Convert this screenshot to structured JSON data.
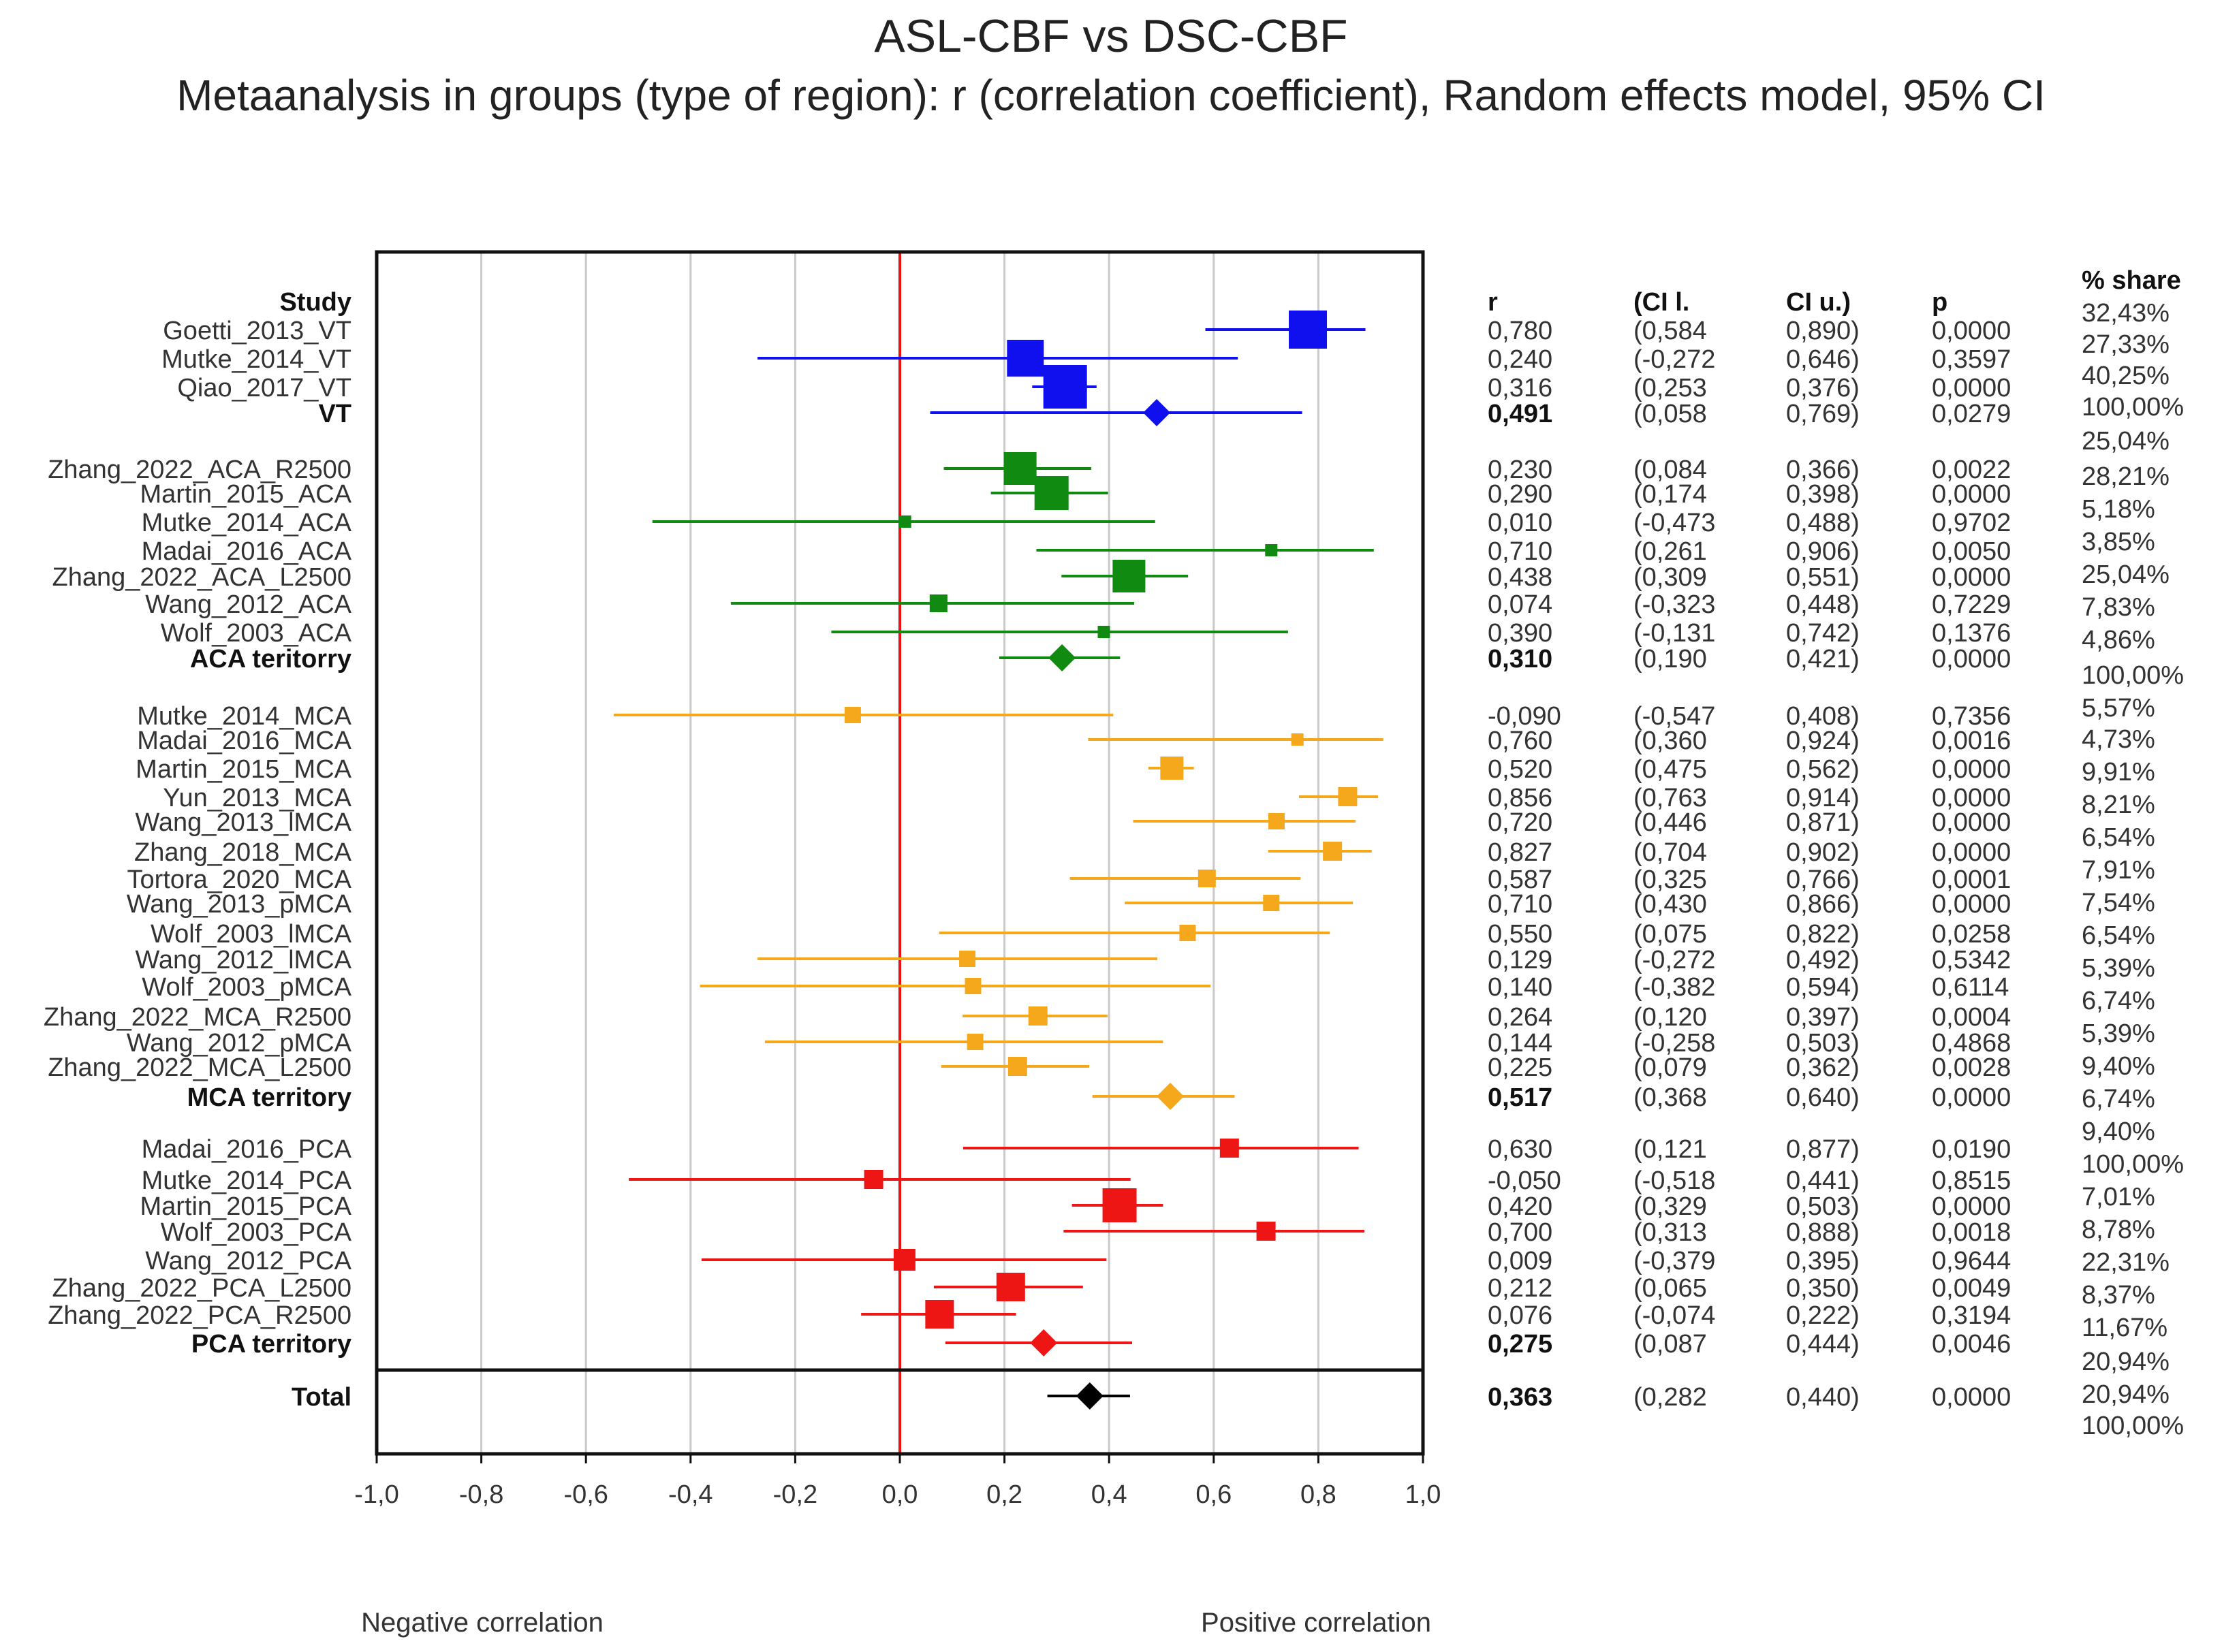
{
  "chart_data": {
    "type": "forest",
    "title": "ASL-CBF vs DSC-CBF",
    "subtitle": "Metaanalysis in groups (type of region): r (correlation coefficient), Random  effects model, 95% CI",
    "xlim": [
      -1.0,
      1.0
    ],
    "xticks": [
      "-1,0",
      "-0,8",
      "-0,6",
      "-0,4",
      "-0,2",
      "0,0",
      "0,2",
      "0,4",
      "0,6",
      "0,8",
      "1,0"
    ],
    "xlabel_left": "Negative correlation",
    "xlabel_right": "Positive correlation",
    "column_headers": {
      "study": "Study",
      "r": "r",
      "ci_l": "(CI l.",
      "ci_u": "CI u.)",
      "p": "p",
      "share": "% share"
    },
    "colors": {
      "VT": "#1010ee",
      "ACA": "#108a10",
      "MCA": "#f5a81c",
      "PCA": "#ee1515",
      "Total": "#000000",
      "zero_line": "#ee1111"
    },
    "rows": [
      {
        "study": "Goetti_2013_VT",
        "group": "VT",
        "r": 0.78,
        "lo": 0.584,
        "hi": 0.89,
        "r_txt": "0,780",
        "lo_txt": "(0,584",
        "hi_txt": "0,890)",
        "p_txt": "0,0000",
        "weight": 32.43
      },
      {
        "study": "Mutke_2014_VT",
        "group": "VT",
        "r": 0.24,
        "lo": -0.272,
        "hi": 0.646,
        "r_txt": "0,240",
        "lo_txt": "(-0,272",
        "hi_txt": "0,646)",
        "p_txt": "0,3597",
        "weight": 27.33
      },
      {
        "study": "Qiao_2017_VT",
        "group": "VT",
        "r": 0.316,
        "lo": 0.253,
        "hi": 0.376,
        "r_txt": "0,316",
        "lo_txt": "(0,253",
        "hi_txt": "0,376)",
        "p_txt": "0,0000",
        "weight": 40.25
      },
      {
        "study": "VT",
        "group": "VT",
        "summary": true,
        "r": 0.491,
        "lo": 0.058,
        "hi": 0.769,
        "r_txt": "0,491",
        "lo_txt": "(0,058",
        "hi_txt": "0,769)",
        "p_txt": "0,0279"
      },
      {
        "study": "Zhang_2022_ACA_R2500",
        "group": "ACA",
        "r": 0.23,
        "lo": 0.084,
        "hi": 0.366,
        "r_txt": "0,230",
        "lo_txt": "(0,084",
        "hi_txt": "0,366)",
        "p_txt": "0,0022",
        "weight": 25.04
      },
      {
        "study": "Martin_2015_ACA",
        "group": "ACA",
        "r": 0.29,
        "lo": 0.174,
        "hi": 0.398,
        "r_txt": "0,290",
        "lo_txt": "(0,174",
        "hi_txt": "0,398)",
        "p_txt": "0,0000",
        "weight": 28.21
      },
      {
        "study": "Mutke_2014_ACA",
        "group": "ACA",
        "r": 0.01,
        "lo": -0.473,
        "hi": 0.488,
        "r_txt": "0,010",
        "lo_txt": "(-0,473",
        "hi_txt": "0,488)",
        "p_txt": "0,9702",
        "weight": 5.18
      },
      {
        "study": "Madai_2016_ACA",
        "group": "ACA",
        "r": 0.71,
        "lo": 0.261,
        "hi": 0.906,
        "r_txt": "0,710",
        "lo_txt": "(0,261",
        "hi_txt": "0,906)",
        "p_txt": "0,0050",
        "weight": 3.85
      },
      {
        "study": "Zhang_2022_ACA_L2500",
        "group": "ACA",
        "r": 0.438,
        "lo": 0.309,
        "hi": 0.551,
        "r_txt": "0,438",
        "lo_txt": "(0,309",
        "hi_txt": "0,551)",
        "p_txt": "0,0000",
        "weight": 25.04
      },
      {
        "study": "Wang_2012_ACA",
        "group": "ACA",
        "r": 0.074,
        "lo": -0.323,
        "hi": 0.448,
        "r_txt": "0,074",
        "lo_txt": "(-0,323",
        "hi_txt": "0,448)",
        "p_txt": "0,7229",
        "weight": 7.83
      },
      {
        "study": "Wolf_2003_ACA",
        "group": "ACA",
        "r": 0.39,
        "lo": -0.131,
        "hi": 0.742,
        "r_txt": "0,390",
        "lo_txt": "(-0,131",
        "hi_txt": "0,742)",
        "p_txt": "0,1376",
        "weight": 4.86
      },
      {
        "study": "ACA teritorry",
        "group": "ACA",
        "summary": true,
        "r": 0.31,
        "lo": 0.19,
        "hi": 0.421,
        "r_txt": "0,310",
        "lo_txt": "(0,190",
        "hi_txt": "0,421)",
        "p_txt": "0,0000"
      },
      {
        "study": "Mutke_2014_MCA",
        "group": "MCA",
        "r": -0.09,
        "lo": -0.547,
        "hi": 0.408,
        "r_txt": "-0,090",
        "lo_txt": "(-0,547",
        "hi_txt": "0,408)",
        "p_txt": "0,7356",
        "weight": 5.57
      },
      {
        "study": "Madai_2016_MCA",
        "group": "MCA",
        "r": 0.76,
        "lo": 0.36,
        "hi": 0.924,
        "r_txt": "0,760",
        "lo_txt": "(0,360",
        "hi_txt": "0,924)",
        "p_txt": "0,0016",
        "weight": 4.73
      },
      {
        "study": "Martin_2015_MCA",
        "group": "MCA",
        "r": 0.52,
        "lo": 0.475,
        "hi": 0.562,
        "r_txt": "0,520",
        "lo_txt": "(0,475",
        "hi_txt": "0,562)",
        "p_txt": "0,0000",
        "weight": 9.91
      },
      {
        "study": "Yun_2013_MCA",
        "group": "MCA",
        "r": 0.856,
        "lo": 0.763,
        "hi": 0.914,
        "r_txt": "0,856",
        "lo_txt": "(0,763",
        "hi_txt": "0,914)",
        "p_txt": "0,0000",
        "weight": 8.21
      },
      {
        "study": "Wang_2013_lMCA",
        "group": "MCA",
        "r": 0.72,
        "lo": 0.446,
        "hi": 0.871,
        "r_txt": "0,720",
        "lo_txt": "(0,446",
        "hi_txt": "0,871)",
        "p_txt": "0,0000",
        "weight": 6.54
      },
      {
        "study": "Zhang_2018_MCA",
        "group": "MCA",
        "r": 0.827,
        "lo": 0.704,
        "hi": 0.902,
        "r_txt": "0,827",
        "lo_txt": "(0,704",
        "hi_txt": "0,902)",
        "p_txt": "0,0000",
        "weight": 7.91
      },
      {
        "study": "Tortora_2020_MCA",
        "group": "MCA",
        "r": 0.587,
        "lo": 0.325,
        "hi": 0.766,
        "r_txt": "0,587",
        "lo_txt": "(0,325",
        "hi_txt": "0,766)",
        "p_txt": "0,0001",
        "weight": 7.54
      },
      {
        "study": "Wang_2013_pMCA",
        "group": "MCA",
        "r": 0.71,
        "lo": 0.43,
        "hi": 0.866,
        "r_txt": "0,710",
        "lo_txt": "(0,430",
        "hi_txt": "0,866)",
        "p_txt": "0,0000",
        "weight": 6.54
      },
      {
        "study": "Wolf_2003_lMCA",
        "group": "MCA",
        "r": 0.55,
        "lo": 0.075,
        "hi": 0.822,
        "r_txt": "0,550",
        "lo_txt": "(0,075",
        "hi_txt": "0,822)",
        "p_txt": "0,0258",
        "weight": 5.39
      },
      {
        "study": "Wang_2012_lMCA",
        "group": "MCA",
        "r": 0.129,
        "lo": -0.272,
        "hi": 0.492,
        "r_txt": "0,129",
        "lo_txt": "(-0,272",
        "hi_txt": "0,492)",
        "p_txt": "0,5342",
        "weight": 6.74
      },
      {
        "study": "Wolf_2003_pMCA",
        "group": "MCA",
        "r": 0.14,
        "lo": -0.382,
        "hi": 0.594,
        "r_txt": "0,140",
        "lo_txt": "(-0,382",
        "hi_txt": "0,594)",
        "p_txt": "0,6114",
        "weight": 5.39
      },
      {
        "study": "Zhang_2022_MCA_R2500",
        "group": "MCA",
        "r": 0.264,
        "lo": 0.12,
        "hi": 0.397,
        "r_txt": "0,264",
        "lo_txt": "(0,120",
        "hi_txt": "0,397)",
        "p_txt": "0,0004",
        "weight": 9.4
      },
      {
        "study": "Wang_2012_pMCA",
        "group": "MCA",
        "r": 0.144,
        "lo": -0.258,
        "hi": 0.503,
        "r_txt": "0,144",
        "lo_txt": "(-0,258",
        "hi_txt": "0,503)",
        "p_txt": "0,4868",
        "weight": 6.74
      },
      {
        "study": "Zhang_2022_MCA_L2500",
        "group": "MCA",
        "r": 0.225,
        "lo": 0.079,
        "hi": 0.362,
        "r_txt": "0,225",
        "lo_txt": "(0,079",
        "hi_txt": "0,362)",
        "p_txt": "0,0028",
        "weight": 9.4
      },
      {
        "study": "MCA territory",
        "group": "MCA",
        "summary": true,
        "r": 0.517,
        "lo": 0.368,
        "hi": 0.64,
        "r_txt": "0,517",
        "lo_txt": "(0,368",
        "hi_txt": "0,640)",
        "p_txt": "0,0000"
      },
      {
        "study": "Madai_2016_PCA",
        "group": "PCA",
        "r": 0.63,
        "lo": 0.121,
        "hi": 0.877,
        "r_txt": "0,630",
        "lo_txt": "(0,121",
        "hi_txt": "0,877)",
        "p_txt": "0,0190",
        "weight": 7.01
      },
      {
        "study": "Mutke_2014_PCA",
        "group": "PCA",
        "r": -0.05,
        "lo": -0.518,
        "hi": 0.441,
        "r_txt": "-0,050",
        "lo_txt": "(-0,518",
        "hi_txt": "0,441)",
        "p_txt": "0,8515",
        "weight": 8.78
      },
      {
        "study": "Martin_2015_PCA",
        "group": "PCA",
        "r": 0.42,
        "lo": 0.329,
        "hi": 0.503,
        "r_txt": "0,420",
        "lo_txt": "(0,329",
        "hi_txt": "0,503)",
        "p_txt": "0,0000",
        "weight": 22.31
      },
      {
        "study": "Wolf_2003_PCA",
        "group": "PCA",
        "r": 0.7,
        "lo": 0.313,
        "hi": 0.888,
        "r_txt": "0,700",
        "lo_txt": "(0,313",
        "hi_txt": "0,888)",
        "p_txt": "0,0018",
        "weight": 8.37
      },
      {
        "study": "Wang_2012_PCA",
        "group": "PCA",
        "r": 0.009,
        "lo": -0.379,
        "hi": 0.395,
        "r_txt": "0,009",
        "lo_txt": "(-0,379",
        "hi_txt": "0,395)",
        "p_txt": "0,9644",
        "weight": 11.67
      },
      {
        "study": "Zhang_2022_PCA_L2500",
        "group": "PCA",
        "r": 0.212,
        "lo": 0.065,
        "hi": 0.35,
        "r_txt": "0,212",
        "lo_txt": "(0,065",
        "hi_txt": "0,350)",
        "p_txt": "0,0049",
        "weight": 20.94
      },
      {
        "study": "Zhang_2022_PCA_R2500",
        "group": "PCA",
        "r": 0.076,
        "lo": -0.074,
        "hi": 0.222,
        "r_txt": "0,076",
        "lo_txt": "(-0,074",
        "hi_txt": "0,222)",
        "p_txt": "0,3194",
        "weight": 20.94
      },
      {
        "study": "PCA territory",
        "group": "PCA",
        "summary": true,
        "r": 0.275,
        "lo": 0.087,
        "hi": 0.444,
        "r_txt": "0,275",
        "lo_txt": "(0,087",
        "hi_txt": "0,444)",
        "p_txt": "0,0046"
      },
      {
        "study": "Total",
        "group": "Total",
        "summary": true,
        "r": 0.363,
        "lo": 0.282,
        "hi": 0.44,
        "r_txt": "0,363",
        "lo_txt": "(0,282",
        "hi_txt": "0,440)",
        "p_txt": "0,0000"
      }
    ],
    "share_column": [
      "32,43%",
      "27,33%",
      "40,25%",
      "100,00%",
      "25,04%",
      "28,21%",
      "5,18%",
      "3,85%",
      "25,04%",
      "7,83%",
      "4,86%",
      "100,00%",
      "5,57%",
      "4,73%",
      "9,91%",
      "8,21%",
      "6,54%",
      "7,91%",
      "7,54%",
      "6,54%",
      "5,39%",
      "6,74%",
      "5,39%",
      "9,40%",
      "6,74%",
      "9,40%",
      "100,00%",
      "7,01%",
      "8,78%",
      "22,31%",
      "8,37%",
      "11,67%",
      "20,94%",
      "20,94%",
      "100,00%"
    ]
  }
}
